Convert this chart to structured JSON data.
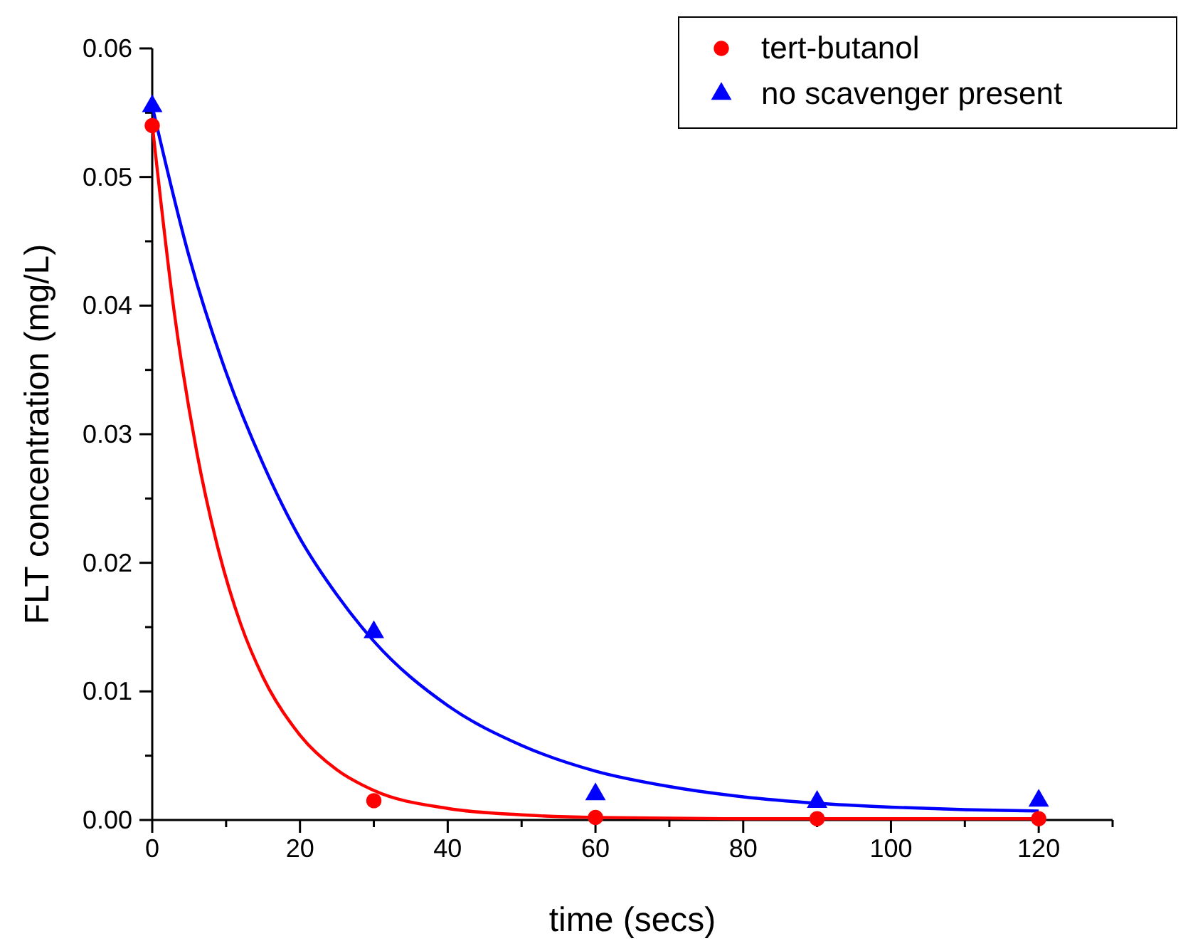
{
  "chart_data": {
    "type": "scatter",
    "xlabel": "time (secs)",
    "ylabel": "FLT concentration (mg/L)",
    "xlim": [
      0,
      130
    ],
    "ylim": [
      0,
      0.06
    ],
    "xticks": [
      0,
      {
        "value": 10,
        "label": null
      },
      20,
      {
        "value": 30,
        "label": null
      },
      40,
      {
        "value": 50,
        "label": null
      },
      60,
      {
        "value": 70,
        "label": null
      },
      80,
      {
        "value": 90,
        "label": null
      },
      100,
      {
        "value": 110,
        "label": null
      },
      120,
      {
        "value": 130,
        "label": null
      }
    ],
    "yticks": [
      {
        "value": 0,
        "label": "0.00"
      },
      {
        "value": 0.005,
        "label": null
      },
      {
        "value": 0.01,
        "label": "0.01"
      },
      {
        "value": 0.015,
        "label": null
      },
      {
        "value": 0.02,
        "label": "0.02"
      },
      {
        "value": 0.025,
        "label": null
      },
      {
        "value": 0.03,
        "label": "0.03"
      },
      {
        "value": 0.035,
        "label": null
      },
      {
        "value": 0.04,
        "label": "0.04"
      },
      {
        "value": 0.045,
        "label": null
      },
      {
        "value": 0.05,
        "label": "0.05"
      },
      {
        "value": 0.055,
        "label": null
      },
      {
        "value": 0.06,
        "label": "0.06"
      }
    ],
    "grid": false,
    "legend": "top right",
    "series": [
      {
        "type": "line",
        "color": "#ff0000",
        "line_style": "solid",
        "x": [
          0,
          3,
          6,
          9,
          12,
          15,
          20,
          25,
          30,
          40,
          50,
          60,
          80,
          120
        ],
        "values": [
          0.0541,
          0.0394,
          0.0287,
          0.0209,
          0.0152,
          0.0111,
          0.0066,
          0.0039,
          0.0023,
          0.0009,
          0.0004,
          0.0002,
          0.0001,
          0.0001
        ]
      },
      {
        "type": "line",
        "color": "#0000ff",
        "line_style": "solid",
        "x": [
          0,
          5,
          10,
          15,
          20,
          25,
          30,
          40,
          50,
          60,
          70,
          80,
          90,
          100,
          110,
          120
        ],
        "values": [
          0.0555,
          0.0438,
          0.0348,
          0.0277,
          0.0219,
          0.0175,
          0.0139,
          0.0089,
          0.0058,
          0.0038,
          0.0026,
          0.0018,
          0.0013,
          0.001,
          0.0008,
          0.0007
        ]
      },
      {
        "name": "tert-butanol",
        "color": "#ff0000",
        "marker": "circle",
        "x": [
          0,
          30,
          60,
          90,
          120
        ],
        "values": [
          0.054,
          0.0015,
          0.0002,
          0.0001,
          0.0001
        ]
      },
      {
        "name": "no scavenger present",
        "color": "#0000ff",
        "marker": "triangle",
        "x": [
          0,
          30,
          60,
          90,
          120
        ],
        "values": [
          0.0555,
          0.0146,
          0.002,
          0.0014,
          0.0015
        ]
      }
    ]
  }
}
